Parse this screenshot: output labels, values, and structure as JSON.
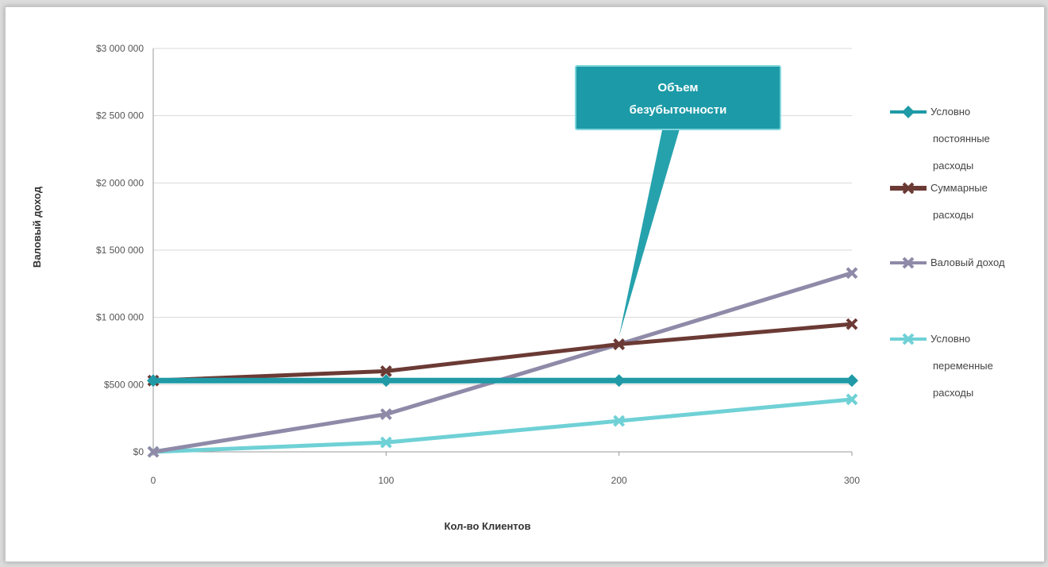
{
  "chart_data": {
    "type": "line",
    "title": "",
    "xlabel": "Кол-во Клиентов",
    "ylabel": "Валовый доход",
    "x": [
      0,
      100,
      200,
      300
    ],
    "x_tick_labels": [
      "0",
      "100",
      "200",
      "300"
    ],
    "y_ticks": [
      0,
      500000,
      1000000,
      1500000,
      2000000,
      2500000,
      3000000
    ],
    "y_tick_labels": [
      "$0",
      "$500 000",
      "$1 000 000",
      "$1 500 000",
      "$2 000 000",
      "$2 500 000",
      "$3 000 000"
    ],
    "ylim": [
      0,
      3000000
    ],
    "grid": true,
    "legend_position": "right",
    "series": [
      {
        "name": "Условно постоянные расходы",
        "values": [
          530000,
          530000,
          530000,
          530000
        ],
        "color": "#1f9aa6",
        "marker": "diamond"
      },
      {
        "name": "Суммарные расходы",
        "values": [
          530000,
          600000,
          800000,
          950000
        ],
        "color": "#6b3a34",
        "marker": "x"
      },
      {
        "name": "Валовый доход",
        "values": [
          0,
          280000,
          800000,
          1330000
        ],
        "color": "#8f8aa8",
        "marker": "x"
      },
      {
        "name": "Условно переменные расходы",
        "values": [
          0,
          70000,
          230000,
          390000
        ],
        "color": "#6fd1d6",
        "marker": "x"
      }
    ],
    "annotations": [
      {
        "text_lines": [
          "Объем",
          "безубыточности"
        ],
        "points_to": {
          "x": 200,
          "y": 800000
        }
      }
    ]
  }
}
